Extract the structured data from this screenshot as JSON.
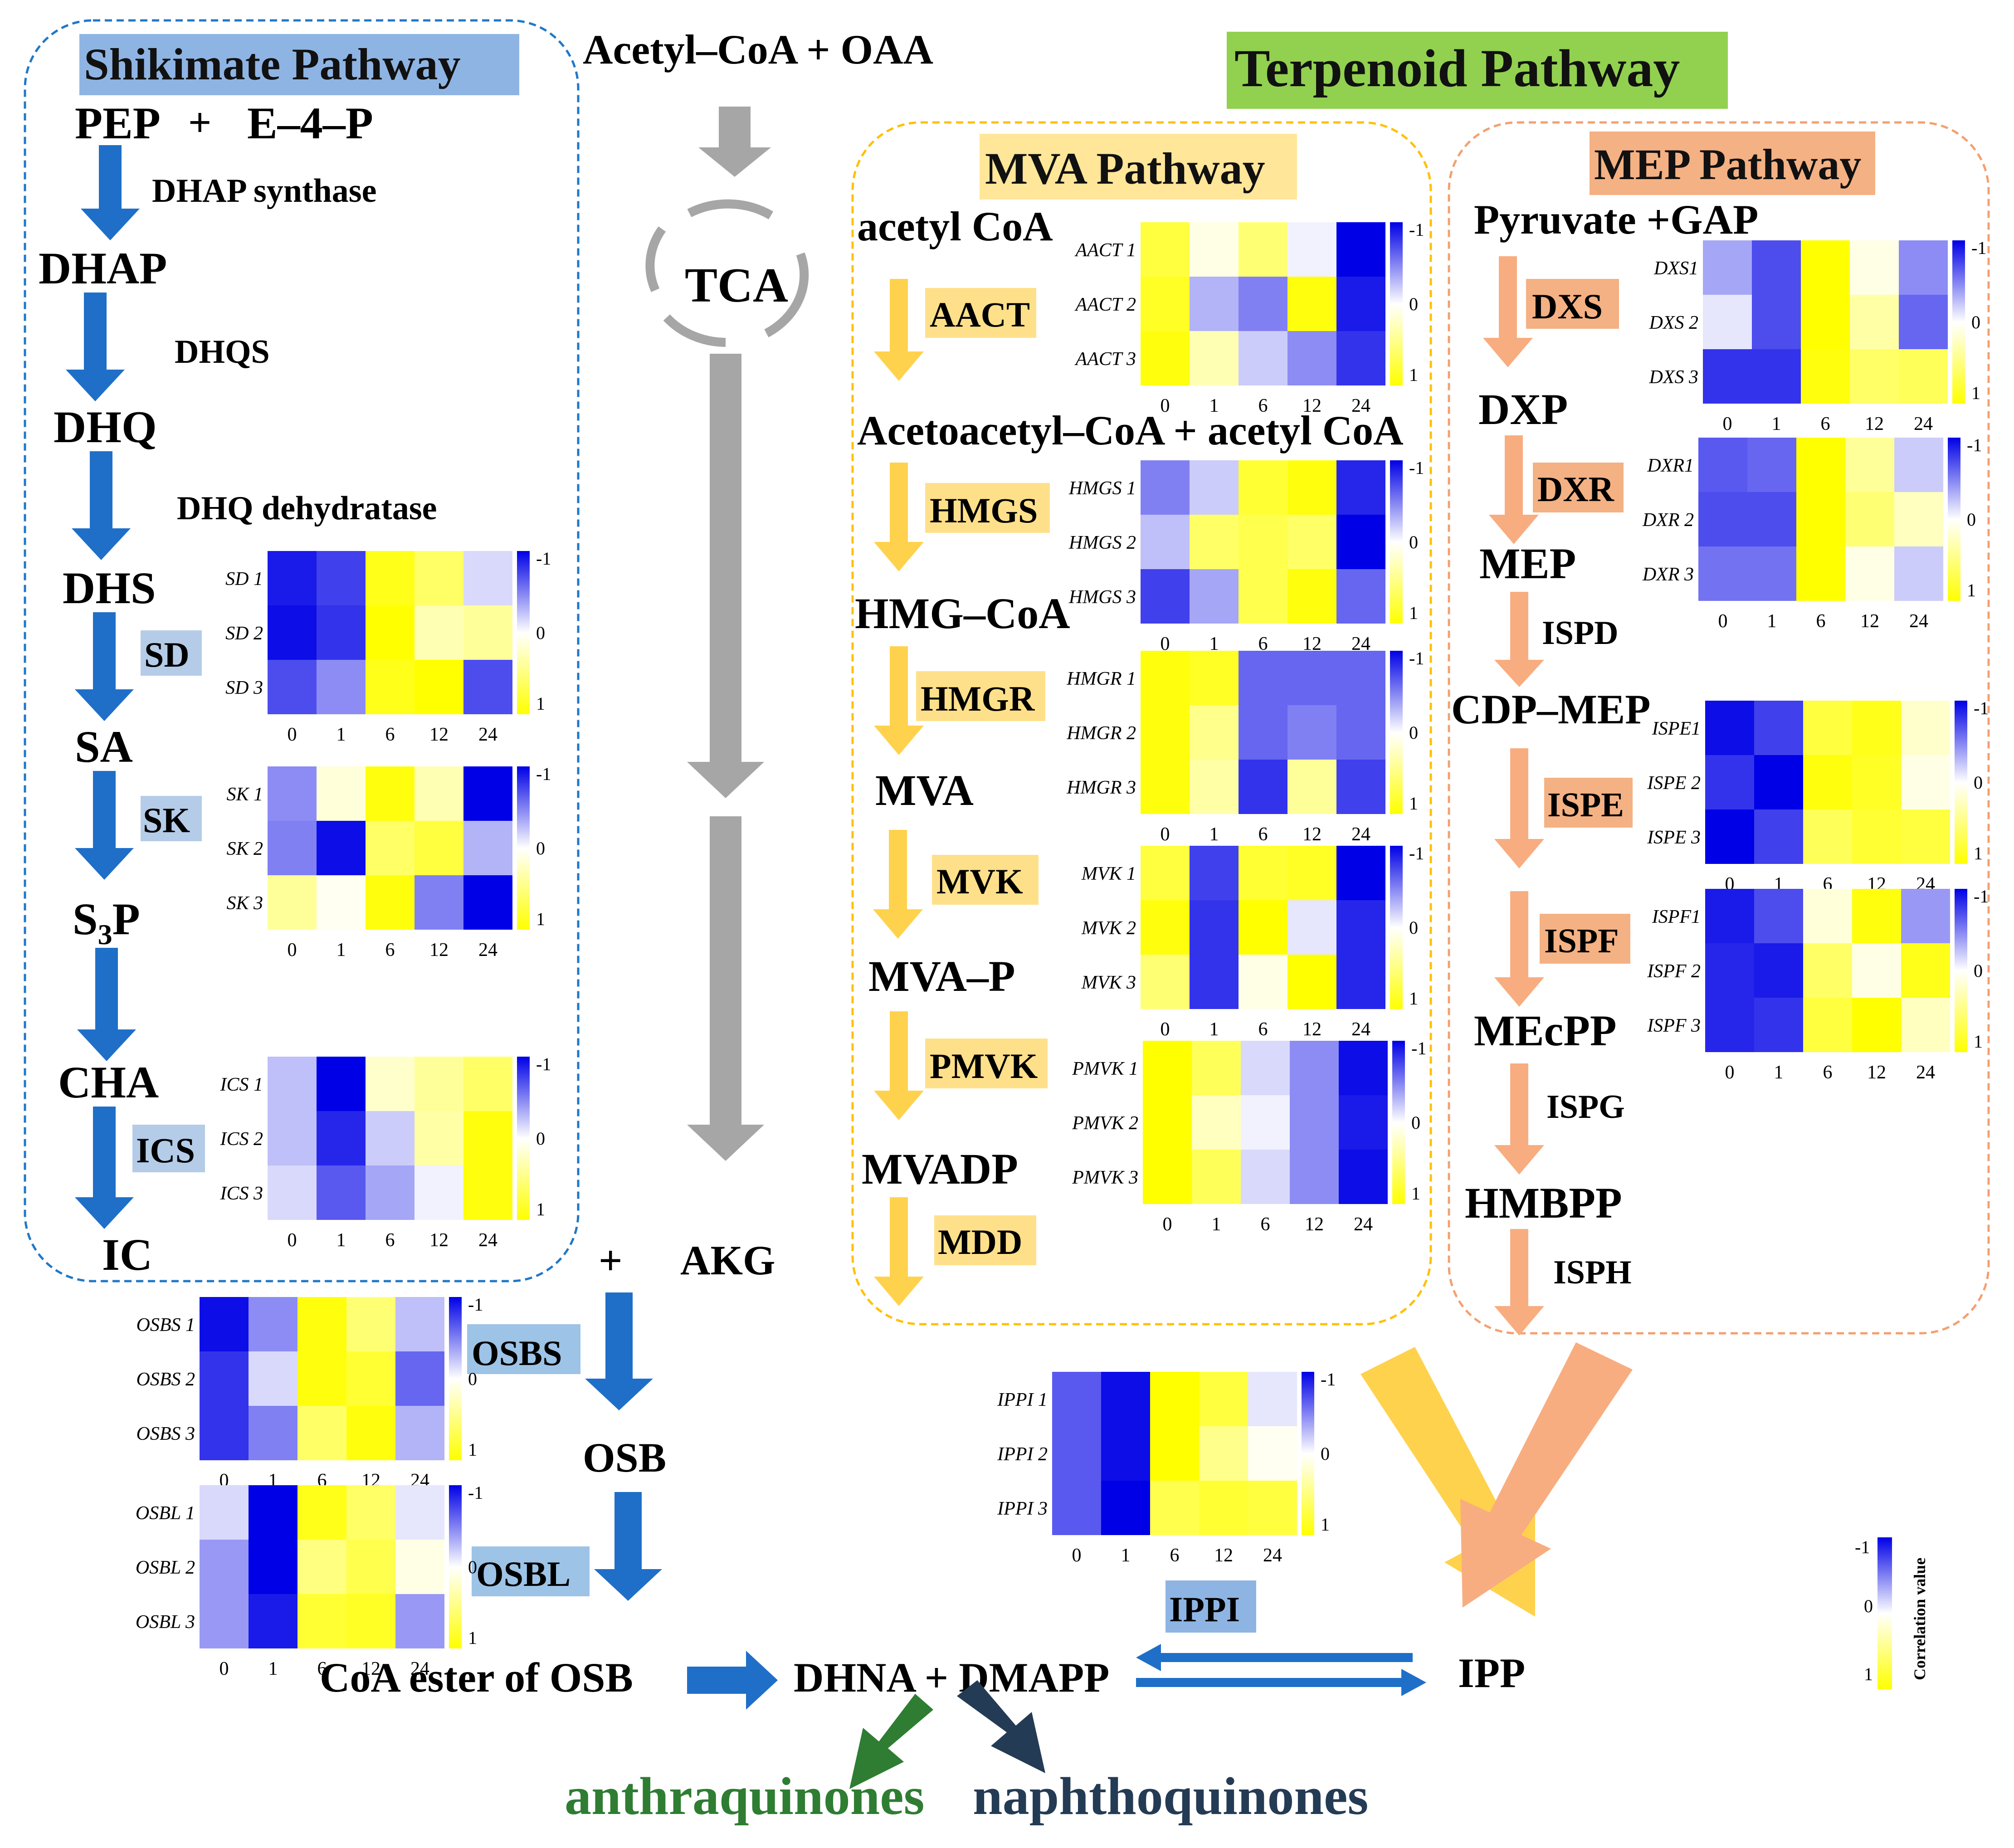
{
  "shikimate": {
    "title": "Shikimate Pathway",
    "pep": "PEP",
    "plus": "+",
    "e4p": "E–4–P",
    "dhap_synthase": "DHAP synthase",
    "dhap": "DHAP",
    "dhqs": "DHQS",
    "dhq": "DHQ",
    "dhq_dehydratase": "DHQ dehydratase",
    "dhs": "DHS",
    "sd": "SD",
    "sa": "SA",
    "sk": "SK",
    "s3p": "S3P",
    "cha": "CHA",
    "ics": "ICS",
    "ic": "IC"
  },
  "central": {
    "acetyl_oaa": "Acetyl–CoA + OAA",
    "tca": "TCA",
    "plus": "+",
    "akg": "AKG",
    "osbs": "OSBS",
    "osb": "OSB",
    "osbl": "OSBL",
    "coa_ester": "CoA ester of OSB",
    "dhna_dmapp": "DHNA + DMAPP",
    "ipp": "IPP",
    "ippi": "IPPI",
    "anthraquinones": "anthraquinones",
    "naphthoquinones": "naphthoquinones"
  },
  "terpenoid": {
    "title": "Terpenoid Pathway"
  },
  "mva": {
    "title": "MVA Pathway",
    "acetyl_coa": "acetyl CoA",
    "aact": "AACT",
    "acetoacetyl": "Acetoacetyl–CoA + acetyl CoA",
    "hmgs": "HMGS",
    "hmg_coa": "HMG–CoA",
    "hmgr": "HMGR",
    "mva": "MVA",
    "mvk": "MVK",
    "mva_p": "MVA–P",
    "pmvk": "PMVK",
    "mvadp": "MVADP",
    "mdd": "MDD"
  },
  "mep": {
    "title": "MEP Pathway",
    "pyruvate_gap": "Pyruvate +GAP",
    "dxs": "DXS",
    "dxp": "DXP",
    "dxr": "DXR",
    "mep": "MEP",
    "ispd": "ISPD",
    "cdp_mep": "CDP–MEP",
    "ispe": "ISPE",
    "ispf": "ISPF",
    "mecpp": "MEcPP",
    "ispg": "ISPG",
    "hmbpp": "HMBPP",
    "isph": "ISPH"
  },
  "legend": {
    "title": "Correlation value",
    "ticks": [
      "-1",
      "0",
      "1"
    ]
  },
  "colors": {
    "shikimate_title_bg": "#8eb4e3",
    "terpenoid_title_bg": "#92d050",
    "mva_title_bg": "#ffe699",
    "mep_title_bg": "#f4b183",
    "shikimate_border": "#1f78c8",
    "mva_border": "#ffc000",
    "mep_border": "#f4a070",
    "blue_arrow": "#1f6fc8",
    "yellow_arrow": "#ffd24d",
    "orange_arrow": "#f8ad80",
    "gray_arrow": "#a6a6a6",
    "anthraquinones": "#2e7d32",
    "naphthoquinones": "#243b55",
    "green_arrow": "#2e7d32",
    "navy_arrow": "#243b55",
    "enzyme_blue_bg": "#b4cce8",
    "enzyme_osb_bg": "#9dc3e6",
    "enzyme_mva_bg": "#ffe08a",
    "enzyme_mep_bg": "#f4b183"
  },
  "chart_data": {
    "type": "heatmap",
    "title": "Correlation value",
    "color_scale": {
      "min": -1,
      "mid": 0,
      "max": 1,
      "min_color": "#0000e6",
      "mid_color": "#ffffff",
      "max_color": "#ffff00"
    },
    "timepoints": [
      "0",
      "1",
      "6",
      "12",
      "24"
    ],
    "legend_ticks": [
      "-1",
      "0",
      "1"
    ],
    "maps": [
      {
        "id": "sd",
        "rows": [
          "SD 1",
          "SD 2",
          "SD 3"
        ],
        "values": [
          [
            -0.9,
            -0.75,
            0.9,
            0.6,
            -0.15
          ],
          [
            -0.95,
            -0.8,
            1.0,
            0.3,
            0.4
          ],
          [
            -0.7,
            -0.45,
            0.9,
            1.0,
            -0.7
          ]
        ]
      },
      {
        "id": "sk",
        "rows": [
          "SK 1",
          "SK 2",
          "SK 3"
        ],
        "values": [
          [
            -0.45,
            0.15,
            0.95,
            0.3,
            -1.0
          ],
          [
            -0.5,
            -0.95,
            0.6,
            0.75,
            -0.3
          ],
          [
            0.4,
            0.05,
            0.95,
            -0.5,
            -1.0
          ]
        ]
      },
      {
        "id": "ics",
        "rows": [
          "ICS 1",
          "ICS 2",
          "ICS 3"
        ],
        "values": [
          [
            -0.25,
            -1.0,
            0.2,
            0.4,
            0.6
          ],
          [
            -0.25,
            -0.85,
            -0.2,
            0.35,
            0.95
          ],
          [
            -0.15,
            -0.65,
            -0.35,
            -0.05,
            0.95
          ]
        ]
      },
      {
        "id": "osbs",
        "rows": [
          "OSBS 1",
          "OSBS 2",
          "OSBS 3"
        ],
        "values": [
          [
            -0.95,
            -0.45,
            0.95,
            0.55,
            -0.25
          ],
          [
            -0.8,
            -0.15,
            0.95,
            0.8,
            -0.6
          ],
          [
            -0.8,
            -0.5,
            0.6,
            0.95,
            -0.3
          ]
        ]
      },
      {
        "id": "osbl",
        "rows": [
          "OSBL 1",
          "OSBL 2",
          "OSBL 3"
        ],
        "values": [
          [
            -0.15,
            -1.0,
            0.9,
            0.6,
            -0.1
          ],
          [
            -0.4,
            -1.0,
            0.5,
            0.7,
            0.1
          ],
          [
            -0.4,
            -0.9,
            0.8,
            0.85,
            -0.4
          ]
        ]
      },
      {
        "id": "aact",
        "rows": [
          "AACT 1",
          "AACT 2",
          "AACT 3"
        ],
        "values": [
          [
            0.75,
            0.1,
            0.55,
            -0.05,
            -1.0
          ],
          [
            0.85,
            -0.3,
            -0.5,
            0.95,
            -0.9
          ],
          [
            0.95,
            0.3,
            -0.2,
            -0.45,
            -0.8
          ]
        ]
      },
      {
        "id": "hmgs",
        "rows": [
          "HMGS 1",
          "HMGS 2",
          "HMGS 3"
        ],
        "values": [
          [
            -0.5,
            -0.2,
            0.8,
            0.95,
            -0.85
          ],
          [
            -0.25,
            0.6,
            0.7,
            0.6,
            -1.0
          ],
          [
            -0.75,
            -0.35,
            0.7,
            0.95,
            -0.6
          ]
        ]
      },
      {
        "id": "hmgr",
        "rows": [
          "HMGR 1",
          "HMGR 2",
          "HMGR 3"
        ],
        "values": [
          [
            0.95,
            0.85,
            -0.6,
            -0.6,
            -0.6
          ],
          [
            0.95,
            0.45,
            -0.6,
            -0.5,
            -0.6
          ],
          [
            0.95,
            0.35,
            -0.8,
            0.4,
            -0.75
          ]
        ]
      },
      {
        "id": "mvk",
        "rows": [
          "MVK 1",
          "MVK 2",
          "MVK 3"
        ],
        "values": [
          [
            0.75,
            -0.75,
            0.8,
            0.85,
            -1.0
          ],
          [
            0.95,
            -0.8,
            1.0,
            -0.1,
            -0.85
          ],
          [
            0.55,
            -0.8,
            0.1,
            1.0,
            -0.85
          ]
        ]
      },
      {
        "id": "pmvk",
        "rows": [
          "PMVK 1",
          "PMVK 2",
          "PMVK 3"
        ],
        "values": [
          [
            1.0,
            0.65,
            -0.15,
            -0.45,
            -0.95
          ],
          [
            1.0,
            0.25,
            -0.05,
            -0.45,
            -0.9
          ],
          [
            1.0,
            0.65,
            -0.15,
            -0.45,
            -0.95
          ]
        ]
      },
      {
        "id": "dxs",
        "rows": [
          "DXS1",
          "DXS 2",
          "DXS 3"
        ],
        "values": [
          [
            -0.35,
            -0.7,
            1.0,
            0.1,
            -0.45
          ],
          [
            -0.1,
            -0.7,
            1.0,
            0.35,
            -0.6
          ],
          [
            -0.8,
            -0.8,
            0.95,
            0.6,
            0.65
          ]
        ]
      },
      {
        "id": "dxr",
        "rows": [
          "DXR1",
          "DXR 2",
          "DXR 3"
        ],
        "values": [
          [
            -0.65,
            -0.6,
            1.0,
            0.4,
            -0.2
          ],
          [
            -0.7,
            -0.7,
            1.0,
            0.55,
            0.25
          ],
          [
            -0.55,
            -0.55,
            1.0,
            0.1,
            -0.2
          ]
        ]
      },
      {
        "id": "ispe",
        "rows": [
          "ISPE1",
          "ISPE 2",
          "ISPE 3"
        ],
        "values": [
          [
            -0.95,
            -0.75,
            0.75,
            0.9,
            0.2
          ],
          [
            -0.8,
            -1.0,
            0.95,
            0.85,
            0.1
          ],
          [
            -1.0,
            -0.75,
            0.65,
            0.8,
            0.75
          ]
        ]
      },
      {
        "id": "ispf",
        "rows": [
          "ISPF1",
          "ISPF 2",
          "ISPF 3"
        ],
        "values": [
          [
            -0.9,
            -0.7,
            0.15,
            0.95,
            -0.4
          ],
          [
            -0.85,
            -0.9,
            0.6,
            0.1,
            0.9
          ],
          [
            -0.85,
            -0.8,
            0.75,
            1.0,
            0.25
          ]
        ]
      },
      {
        "id": "ippi",
        "rows": [
          "IPPI 1",
          "IPPI 2",
          "IPPI 3"
        ],
        "values": [
          [
            -0.65,
            -0.95,
            1.0,
            0.75,
            -0.1
          ],
          [
            -0.65,
            -0.95,
            1.0,
            0.45,
            0.05
          ],
          [
            -0.65,
            -1.0,
            0.7,
            0.8,
            0.75
          ]
        ]
      }
    ]
  }
}
